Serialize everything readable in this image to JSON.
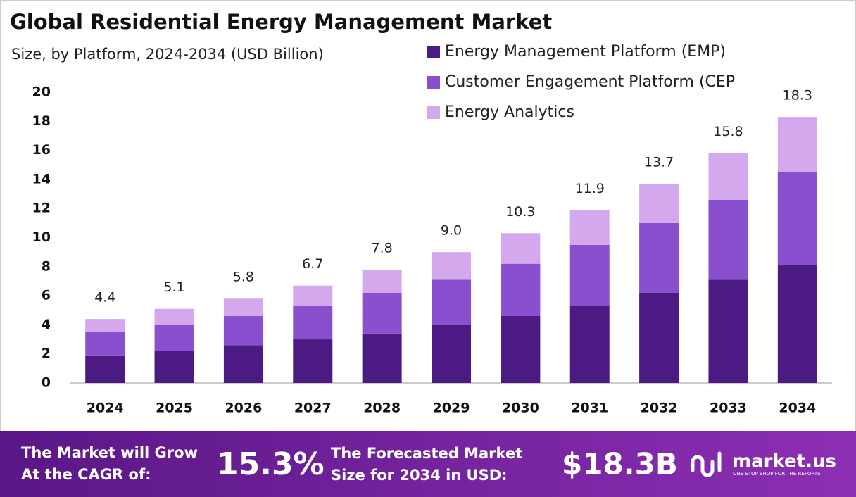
{
  "chart_data": {
    "type": "stacked-bar",
    "title": "Global Residential Energy Management Market",
    "subtitle": "Size, by Platform, 2024-2034 (USD Billion)",
    "categories": [
      "2024",
      "2025",
      "2026",
      "2027",
      "2028",
      "2029",
      "2030",
      "2031",
      "2032",
      "2033",
      "2034"
    ],
    "series": [
      {
        "name": "Energy Management Platform (EMP)",
        "color": "#4b1a82",
        "values": [
          1.9,
          2.2,
          2.6,
          3.0,
          3.4,
          4.0,
          4.6,
          5.3,
          6.2,
          7.1,
          8.1
        ]
      },
      {
        "name": "Customer Engagement Platform (CEP",
        "color": "#8a4fcf",
        "values": [
          1.6,
          1.8,
          2.0,
          2.3,
          2.8,
          3.1,
          3.6,
          4.2,
          4.8,
          5.5,
          6.4
        ]
      },
      {
        "name": "Energy Analytics",
        "color": "#d3a8ec",
        "values": [
          0.9,
          1.1,
          1.2,
          1.4,
          1.6,
          1.9,
          2.1,
          2.4,
          2.7,
          3.2,
          3.8
        ]
      }
    ],
    "totals": [
      4.4,
      5.1,
      5.8,
      6.7,
      7.8,
      9.0,
      10.3,
      11.9,
      13.7,
      15.8,
      18.3
    ],
    "total_labels": [
      "4.4",
      "5.1",
      "5.8",
      "6.7",
      "7.8",
      "9.0",
      "10.3",
      "11.9",
      "13.7",
      "15.8",
      "18.3"
    ],
    "ylim": [
      0,
      20
    ],
    "yticks": [
      0,
      2,
      4,
      6,
      8,
      10,
      12,
      14,
      16,
      18,
      20
    ],
    "grid": false,
    "legend": "top-right"
  },
  "footer": {
    "cagr_text": [
      "The Market will Grow",
      "At the CAGR of:"
    ],
    "cagr_value": "15.3%",
    "forecast_text": [
      "The Forecasted Market",
      "Size for 2034 in USD:"
    ],
    "forecast_value": "$18.3B",
    "brand": "market.us",
    "tagline": "ONE STOP SHOP FOR THE REPORTS"
  }
}
